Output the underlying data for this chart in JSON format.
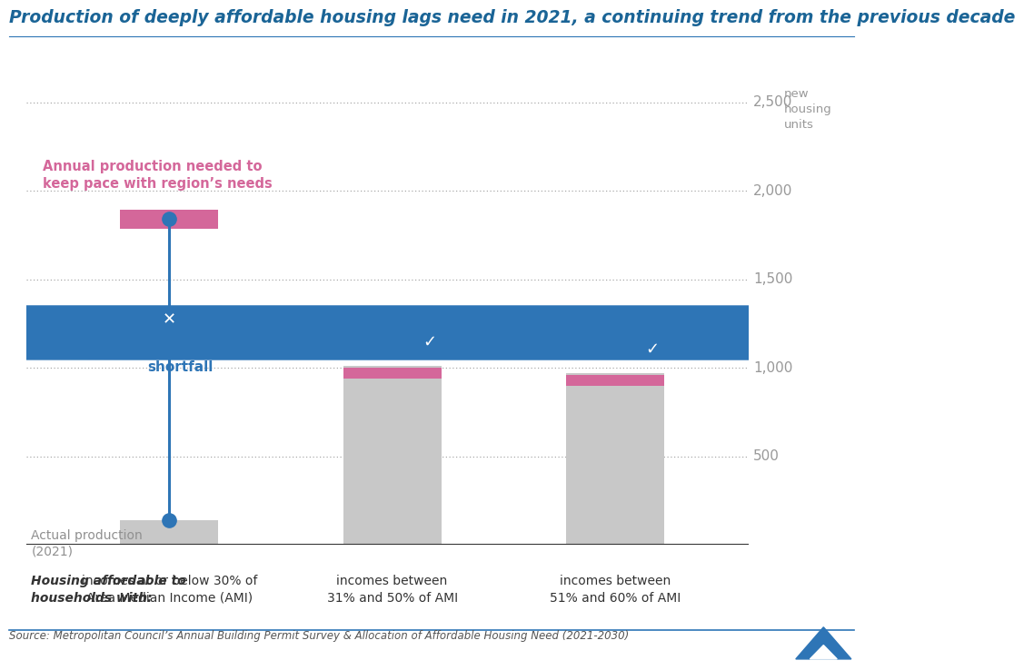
{
  "title": "Production of deeply affordable housing lags need in 2021, a continuing trend from the previous decade",
  "title_color": "#1a6496",
  "title_fontsize": 13.5,
  "source_text": "Source: Metropolitan Council’s Annual Building Permit Survey & Allocation of Affordable Housing Need (2021-2030)",
  "categories": [
    "incomes at or below 30% of\nArea Median Income (AMI)",
    "incomes between\n31% and 50% of AMI",
    "incomes between\n51% and 60% of AMI"
  ],
  "actual_values": [
    139,
    1010,
    970
  ],
  "needed_values": [
    1840,
    970,
    930
  ],
  "bar_color": "#c8c8c8",
  "need_color": "#d4679a",
  "line_color": "#2e75b6",
  "shortfall_text": "1,700 unit\nshortfall",
  "shortfall_color": "#2e75b6",
  "annotation_label": "Annual production needed to\nkeep pace with region’s needs",
  "annotation_color": "#d4679a",
  "actual_label": "Actual production\n(2021)",
  "actual_label_color": "#909090",
  "xlabel_left": "Housing affordable to\nhouseholds with:",
  "ylabel_right": "new\nhousing\nunits",
  "ylim": [
    0,
    2700
  ],
  "yticks": [
    500,
    1000,
    1500,
    2000,
    2500
  ],
  "background_color": "#ffffff",
  "bar_positions": [
    1.8,
    4.3,
    6.8
  ],
  "bar_width": 1.1
}
